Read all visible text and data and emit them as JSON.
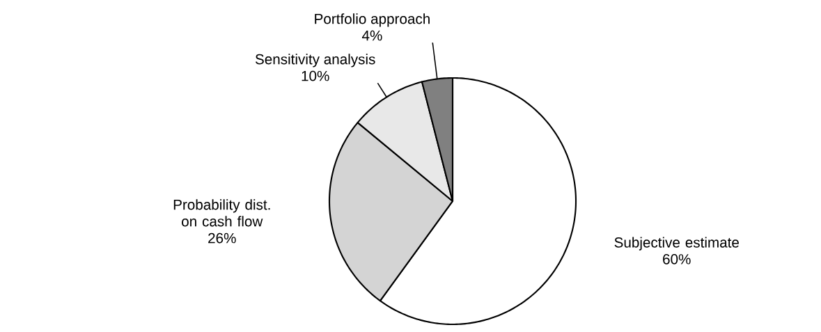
{
  "chart_data": {
    "type": "pie",
    "categories": [
      "Subjective estimate",
      "Probability dist. on cash flow",
      "Sensitivity analysis",
      "Portfolio approach"
    ],
    "values": [
      60,
      26,
      10,
      4
    ],
    "value_labels": [
      "60%",
      "26%",
      "10%",
      "4%"
    ],
    "colors": [
      "#ffffff",
      "#d4d4d4",
      "#e8e8e8",
      "#808080"
    ]
  }
}
